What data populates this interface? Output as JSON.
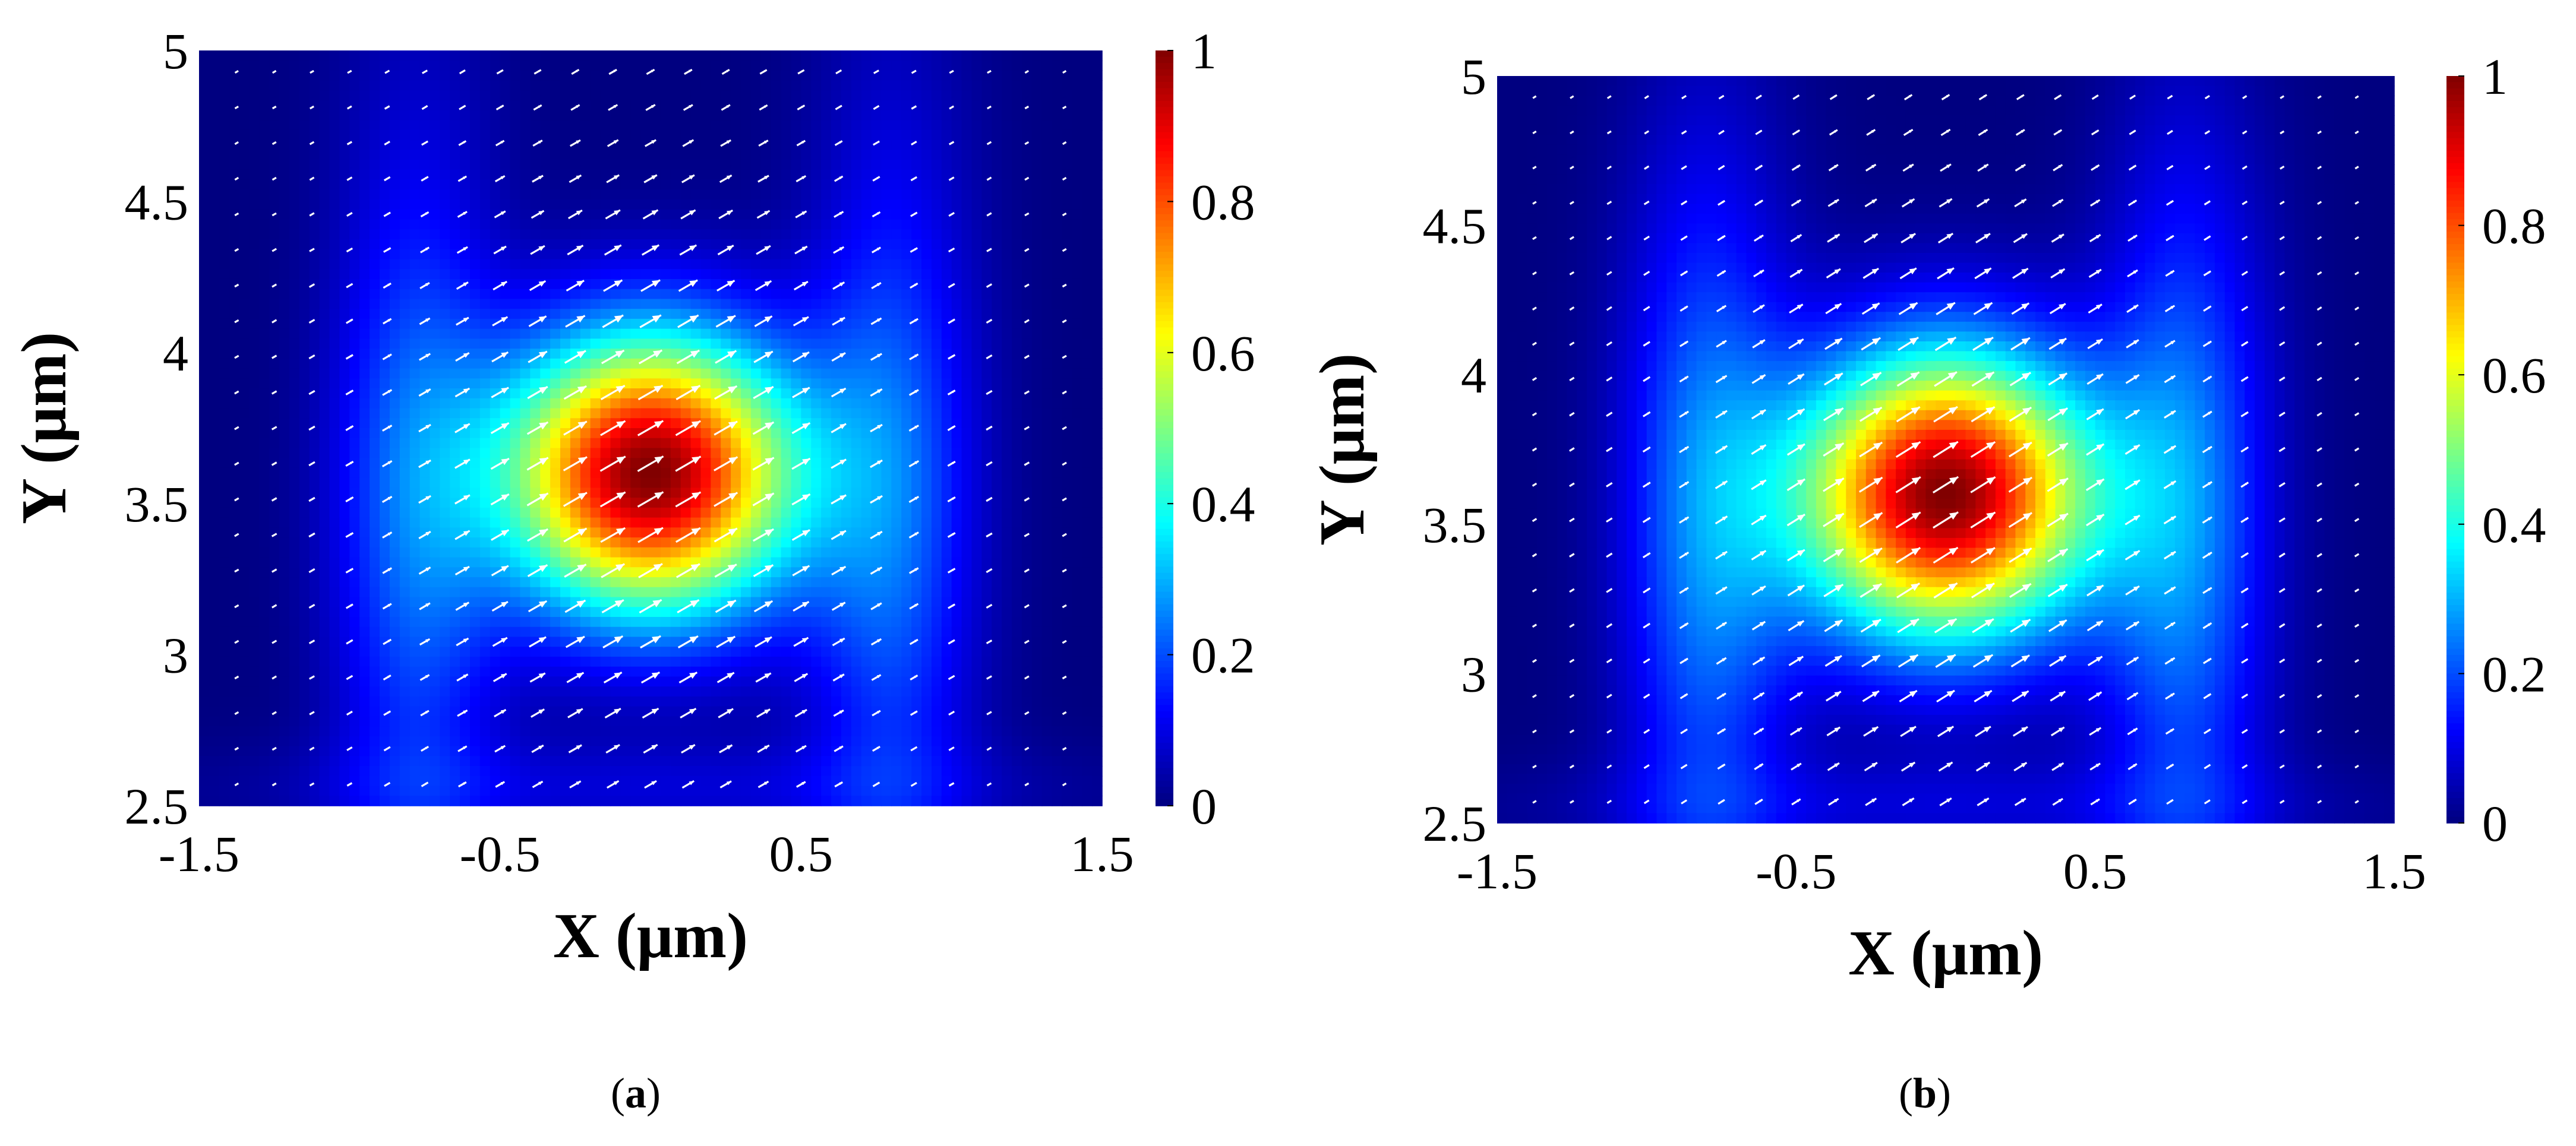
{
  "figure": {
    "panels": [
      {
        "label": "(a)",
        "letter": "a"
      },
      {
        "label": "(b)",
        "letter": "b"
      }
    ]
  },
  "colors": {
    "colormap": "jet",
    "arrow": "#ffffff",
    "background": "#ffffff"
  },
  "chart_data": [
    {
      "type": "heatmap",
      "panel_label": "(a)",
      "title": "",
      "xlabel": "X (μm)",
      "ylabel": "Y (μm)",
      "xlim": [
        -1.5,
        1.5
      ],
      "ylim": [
        2.5,
        5
      ],
      "x_ticks": [
        -1.5,
        -0.5,
        0.5,
        1.5
      ],
      "x_tick_labels": [
        "-1.5",
        "-0.5",
        "0.5",
        "1.5"
      ],
      "y_ticks": [
        2.5,
        3,
        3.5,
        4,
        4.5,
        5
      ],
      "y_tick_labels": [
        "2.5",
        "3",
        "3.5",
        "4",
        "4.5",
        "5"
      ],
      "colorbar": {
        "range": [
          0,
          1
        ],
        "ticks": [
          0,
          0.2,
          0.4,
          0.6,
          0.8,
          1
        ],
        "tick_labels": [
          "0",
          "0.2",
          "0.4",
          "0.6",
          "0.8",
          "1"
        ],
        "colormap": "jet"
      },
      "field": {
        "description_kind": "normalized intensity with white polarization arrows",
        "peak_value": 1,
        "peak_center": [
          0,
          3.6
        ],
        "sigma_x": 0.34,
        "sigma_y": 0.33,
        "side_lobe_centers_x": [
          -0.78,
          0.8
        ],
        "side_lobe_sigma_x": 0.2,
        "side_lobe_level": 0.22,
        "arrow_direction_deg": 30,
        "arrow_grid": {
          "nx": 23,
          "ny": 21
        }
      }
    },
    {
      "type": "heatmap",
      "panel_label": "(b)",
      "title": "",
      "xlabel": "X (μm)",
      "ylabel": "Y (μm)",
      "xlim": [
        -1.5,
        1.5
      ],
      "ylim": [
        2.5,
        5
      ],
      "x_ticks": [
        -1.5,
        -0.5,
        0.5,
        1.5
      ],
      "x_tick_labels": [
        "-1.5",
        "-0.5",
        "0.5",
        "1.5"
      ],
      "y_ticks": [
        2.5,
        3,
        3.5,
        4,
        4.5,
        5
      ],
      "y_tick_labels": [
        "2.5",
        "3",
        "3.5",
        "4",
        "4.5",
        "5"
      ],
      "colorbar": {
        "range": [
          0,
          1
        ],
        "ticks": [
          0,
          0.2,
          0.4,
          0.6,
          0.8,
          1
        ],
        "tick_labels": [
          "0",
          "0.2",
          "0.4",
          "0.6",
          "0.8",
          "1"
        ],
        "colormap": "jet"
      },
      "field": {
        "description_kind": "normalized intensity with white polarization arrows",
        "peak_value": 1,
        "peak_center": [
          0,
          3.6
        ],
        "sigma_x": 0.35,
        "sigma_y": 0.34,
        "side_lobe_centers_x": [
          -0.8,
          0.8
        ],
        "side_lobe_sigma_x": 0.2,
        "side_lobe_level": 0.24,
        "arrow_direction_deg": 32,
        "arrow_grid": {
          "nx": 23,
          "ny": 21
        }
      }
    }
  ]
}
